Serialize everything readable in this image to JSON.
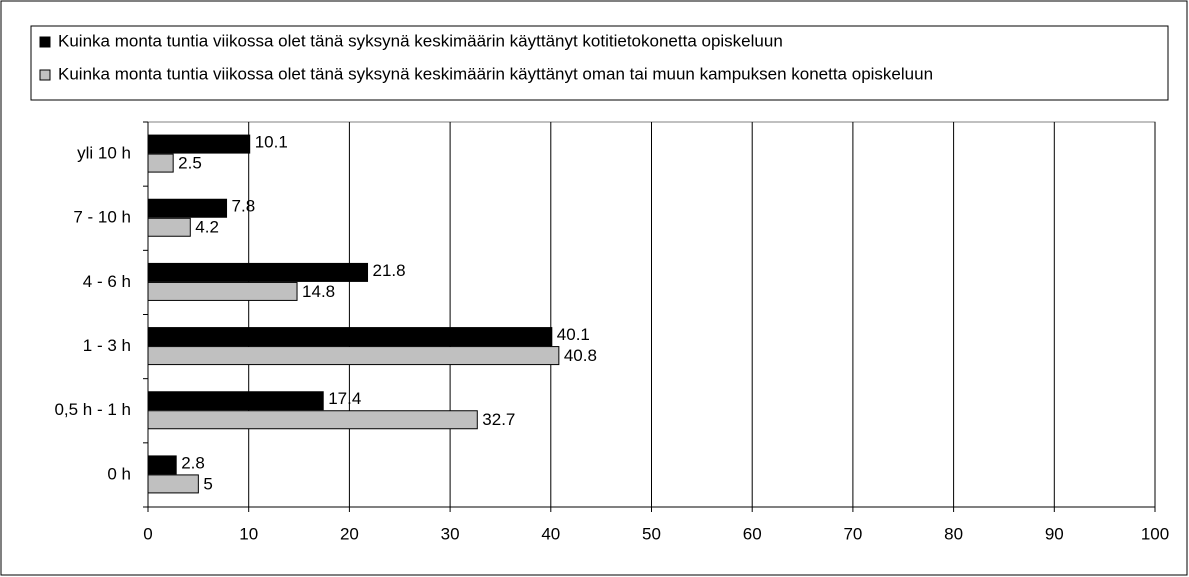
{
  "chart_data": {
    "type": "hbar",
    "categories": [
      "yli 10 h",
      "7 - 10 h",
      "4 - 6 h",
      "1 - 3 h",
      "0,5 h - 1 h",
      "0 h"
    ],
    "series": [
      {
        "name": "Kuinka monta tuntia viikossa olet tänä syksynä keskimäärin käyttänyt kotitietokonetta opiskeluun",
        "color": "#000000",
        "values": [
          10.1,
          7.8,
          21.8,
          40.1,
          17.4,
          2.8
        ]
      },
      {
        "name": "Kuinka monta tuntia viikossa olet tänä syksynä keskimäärin käyttänyt oman tai muun kampuksen konetta opiskeluun",
        "color": "#c0c0c0",
        "values": [
          2.5,
          4.2,
          14.8,
          40.8,
          32.7,
          5
        ]
      }
    ],
    "xlim": [
      0,
      100
    ],
    "xticks": [
      0,
      10,
      20,
      30,
      40,
      50,
      60,
      70,
      80,
      90,
      100
    ],
    "grid": true,
    "legend": "top"
  }
}
